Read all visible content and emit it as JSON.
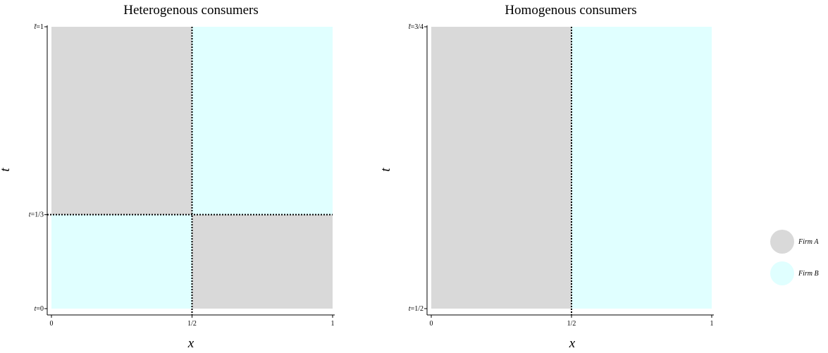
{
  "colors": {
    "firm_a": "#d9d9d9",
    "firm_b": "#e0ffff",
    "axis": "#000000",
    "divider": "#000000"
  },
  "chart_data": [
    {
      "type": "area",
      "title": "Heterogenous consumers",
      "xlabel": "x",
      "ylabel": "t",
      "xlim": [
        0,
        1
      ],
      "ylim": [
        0,
        1
      ],
      "x_ticks": [
        {
          "value": 0,
          "label": "0"
        },
        {
          "value": 0.5,
          "label": "1/2"
        },
        {
          "value": 1,
          "label": "1"
        }
      ],
      "y_ticks": [
        {
          "value": 0,
          "label": "t=0",
          "label_prefix": "t",
          "label_suffix": "=0"
        },
        {
          "value": 0.3333,
          "label": "t=1/3",
          "label_prefix": "t",
          "label_suffix": "=1/3"
        },
        {
          "value": 1,
          "label": "t̄=1",
          "label_prefix": "t̄",
          "label_suffix": "=1"
        }
      ],
      "regions": [
        {
          "firm": "Firm B",
          "x": [
            0,
            0.5
          ],
          "t": [
            0,
            0.3333
          ]
        },
        {
          "firm": "Firm A",
          "x": [
            0.5,
            1
          ],
          "t": [
            0,
            0.3333
          ]
        },
        {
          "firm": "Firm A",
          "x": [
            0,
            0.5
          ],
          "t": [
            0.3333,
            1
          ]
        },
        {
          "firm": "Firm B",
          "x": [
            0.5,
            1
          ],
          "t": [
            0.3333,
            1
          ]
        }
      ],
      "dotted_lines": [
        {
          "orientation": "vertical",
          "value": 0.5
        },
        {
          "orientation": "horizontal",
          "value": 0.3333
        }
      ]
    },
    {
      "type": "area",
      "title": "Homogenous consumers",
      "xlabel": "x",
      "ylabel": "t",
      "xlim": [
        0,
        1
      ],
      "ylim": [
        0.5,
        0.75
      ],
      "x_ticks": [
        {
          "value": 0,
          "label": "0"
        },
        {
          "value": 0.5,
          "label": "1/2"
        },
        {
          "value": 1,
          "label": "1"
        }
      ],
      "y_ticks": [
        {
          "value": 0.5,
          "label": "t=1/2",
          "label_prefix": "t",
          "label_suffix": "=1/2"
        },
        {
          "value": 0.75,
          "label": "t̄=3/4",
          "label_prefix": "t̄",
          "label_suffix": "=3/4"
        }
      ],
      "regions": [
        {
          "firm": "Firm A",
          "x": [
            0,
            0.5
          ],
          "t": [
            0.5,
            0.75
          ]
        },
        {
          "firm": "Firm B",
          "x": [
            0.5,
            1
          ],
          "t": [
            0.5,
            0.75
          ]
        }
      ],
      "dotted_lines": [
        {
          "orientation": "vertical",
          "value": 0.5
        }
      ]
    }
  ],
  "legend": {
    "position": "right",
    "items": [
      {
        "label": "Firm A",
        "color": "#d9d9d9"
      },
      {
        "label": "Firm B",
        "color": "#e0ffff"
      }
    ]
  }
}
